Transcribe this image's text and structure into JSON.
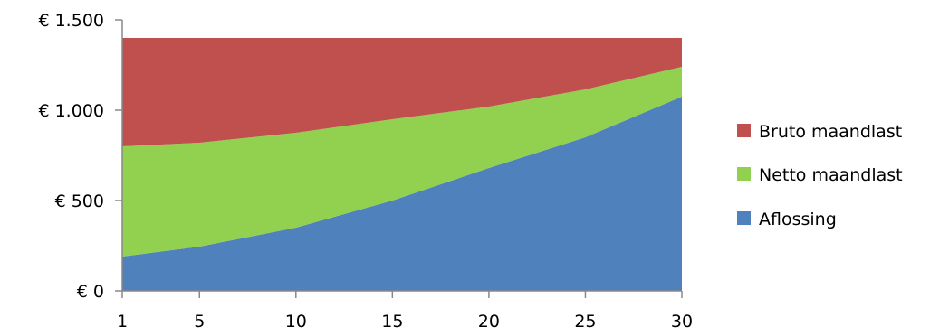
{
  "chart_data": {
    "type": "area",
    "stacked": true,
    "x": [
      1,
      5,
      10,
      15,
      20,
      25,
      30
    ],
    "ylim": [
      0,
      1500
    ],
    "y_ticks": [
      0,
      500,
      1000,
      1500
    ],
    "y_tick_labels": [
      "€ 0",
      "€ 500",
      "€ 1.000",
      "€ 1.500"
    ],
    "x_tick_labels": [
      "1",
      "5",
      "10",
      "15",
      "20",
      "25",
      "30"
    ],
    "grid": false,
    "legend_position": "right",
    "series": [
      {
        "name": "Aflossing",
        "color": "#4f81bd",
        "values": [
          190,
          245,
          350,
          500,
          680,
          850,
          1075
        ]
      },
      {
        "name": "Netto maandlast",
        "color": "#92d050",
        "values": [
          610,
          575,
          525,
          450,
          340,
          265,
          165
        ]
      },
      {
        "name": "Bruto maandlast",
        "color": "#c0504d",
        "values": [
          600,
          580,
          525,
          450,
          380,
          285,
          160
        ]
      }
    ],
    "legend_order": [
      "Bruto maandlast",
      "Netto maandlast",
      "Aflossing"
    ]
  }
}
